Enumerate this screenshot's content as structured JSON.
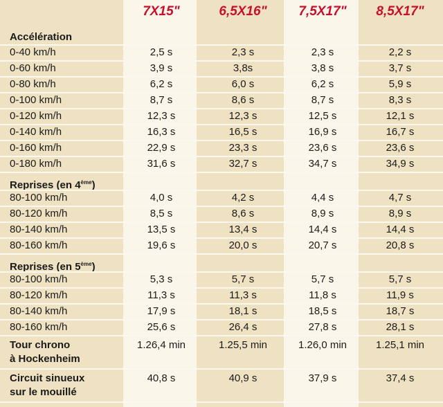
{
  "header": {
    "columns": [
      "7X15\"",
      "6,5X16\"",
      "7,5X17\"",
      "8,5X17\""
    ]
  },
  "sections": [
    {
      "title": "Accélération",
      "rows": [
        [
          "0-40 km/h",
          "2,5 s",
          "2,3 s",
          "2,3 s",
          "2,2 s"
        ],
        [
          "0-60 km/h",
          "3,9 s",
          "3,8s",
          "3,8 s",
          "3,7 s"
        ],
        [
          "0-80 km/h",
          "6,2 s",
          "6,0 s",
          "6,2 s",
          "5,9 s"
        ],
        [
          "0-100 km/h",
          "8,7 s",
          "8,6 s",
          "8,7 s",
          "8,3 s"
        ],
        [
          "0-120 km/h",
          "12,3 s",
          "12,3 s",
          "12,5 s",
          "12,1 s"
        ],
        [
          "0-140 km/h",
          "16,3 s",
          "16,5 s",
          "16,9 s",
          "16,7 s"
        ],
        [
          "0-160 km/h",
          "22,9 s",
          "23,3 s",
          "23,6 s",
          "23,6 s"
        ],
        [
          "0-180 km/h",
          "31,6 s",
          "32,7 s",
          "34,7 s",
          "34,9 s"
        ]
      ]
    },
    {
      "title": "Reprises (en 4",
      "title_sup": "ème",
      "title_end": ")",
      "rows": [
        [
          "80-100 km/h",
          "4,0 s",
          "4,2 s",
          "4,4 s",
          "4,7 s"
        ],
        [
          "80-120 km/h",
          "8,5 s",
          "8,6 s",
          "8,9 s",
          "8,9 s"
        ],
        [
          "80-140 km/h",
          "13,5 s",
          "13,4 s",
          "14,4 s",
          "14,4 s"
        ],
        [
          "80-160 km/h",
          "19,6 s",
          "20,0 s",
          "20,7 s",
          "20,8 s"
        ]
      ]
    },
    {
      "title": "Reprises (en 5",
      "title_sup": "ème",
      "title_end": ")",
      "rows": [
        [
          "80-100 km/h",
          "5,3 s",
          "5,7 s",
          "5,7 s",
          "5,7 s"
        ],
        [
          "80-120 km/h",
          "11,3 s",
          "11,3 s",
          "11,8 s",
          "11,9 s"
        ],
        [
          "80-140 km/h",
          "17,9 s",
          "18,1 s",
          "18,5 s",
          "18,7 s"
        ],
        [
          "80-160 km/h",
          "25,6 s",
          "26,4 s",
          "27,8 s",
          "28,1 s"
        ]
      ]
    }
  ],
  "extra_rows": [
    {
      "label": [
        "Tour chrono",
        "à Hockenheim"
      ],
      "values": [
        "1.26,4 min",
        "1.25,5 min",
        "1.26,0 min",
        "1.25,1 min"
      ]
    },
    {
      "label": [
        "Circuit sinueux",
        "sur le mouillé"
      ],
      "values": [
        "40,8 s",
        "40,9 s",
        "37,9 s",
        "37,4 s"
      ]
    }
  ]
}
